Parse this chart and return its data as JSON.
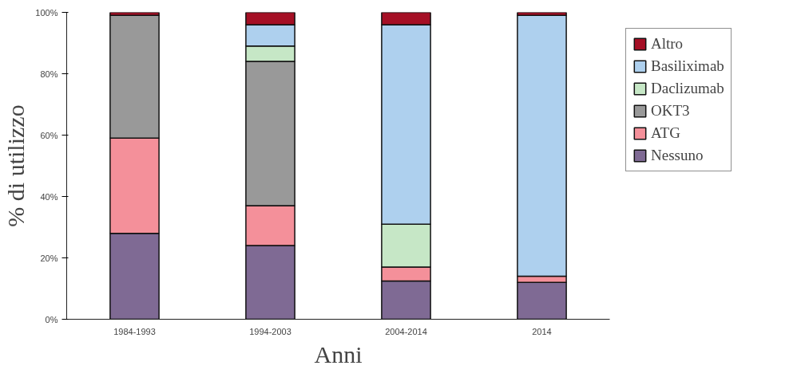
{
  "chart_data": {
    "type": "bar",
    "stacked": true,
    "xlabel": "Anni",
    "ylabel": "% di utilizzo",
    "categories": [
      "1984-1993",
      "1994-2003",
      "2004-2014",
      "2014"
    ],
    "series": [
      {
        "name": "Nessuno",
        "color": "#7f6a94",
        "values": [
          28,
          24,
          12.5,
          12
        ]
      },
      {
        "name": "ATG",
        "color": "#f4909a",
        "values": [
          31,
          13,
          4.5,
          2
        ]
      },
      {
        "name": "OKT3",
        "color": "#999999",
        "values": [
          40,
          47,
          0,
          0
        ]
      },
      {
        "name": "Daclizumab",
        "color": "#c6e7c6",
        "values": [
          0,
          5,
          14,
          0
        ]
      },
      {
        "name": "Basiliximab",
        "color": "#aed0ee",
        "values": [
          0,
          7,
          65,
          85
        ]
      },
      {
        "name": "Altro",
        "color": "#a50f25",
        "values": [
          1,
          4,
          4,
          1
        ]
      }
    ],
    "ylim": [
      0,
      100
    ],
    "yticks": [
      {
        "value": 0,
        "label": "0%"
      },
      {
        "value": 20,
        "label": "20%"
      },
      {
        "value": 40,
        "label": "40%"
      },
      {
        "value": 60,
        "label": "60%"
      },
      {
        "value": 80,
        "label": "80%"
      },
      {
        "value": 100,
        "label": "100%"
      }
    ],
    "grid": false,
    "legend": "top right"
  }
}
